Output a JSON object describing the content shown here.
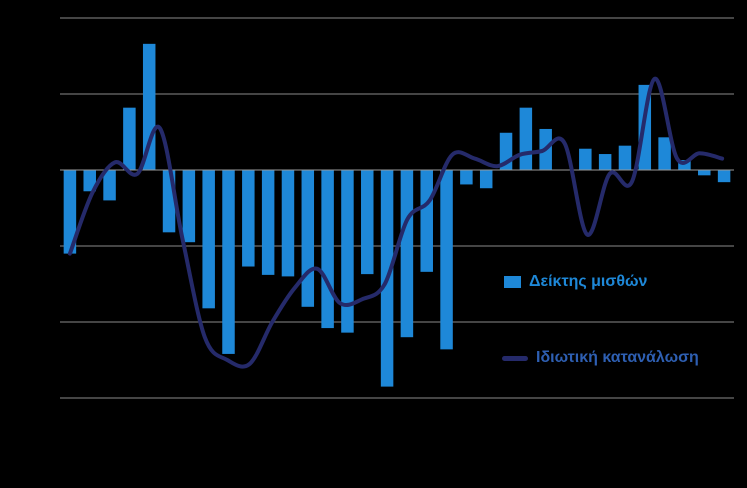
{
  "chart_data": {
    "type": "bar",
    "ylim": [
      -30,
      20
    ],
    "gridlines": [
      -30,
      -20,
      -10,
      10,
      20
    ],
    "grid": true,
    "legend_position": "right",
    "colors": {
      "bar": "#1e88d8",
      "line": "#252a6a",
      "grid": "#8a8a8a",
      "axis": "#9a9a9a",
      "background": "#000000",
      "legend_bar_text": "#1e88d8",
      "legend_line_text": "#2e5fb2"
    },
    "series": [
      {
        "name": "Δείκτης μισθών",
        "type": "bar",
        "values": [
          -11,
          -2.8,
          -4,
          8.2,
          16.6,
          -8.2,
          -9.5,
          -18.2,
          -24.2,
          -12.7,
          -13.8,
          -14,
          -18,
          -20.8,
          -21.4,
          -13.7,
          -28.5,
          -22,
          -13.4,
          -23.6,
          -1.9,
          -2.4,
          4.9,
          8.2,
          5.4,
          0,
          2.8,
          2.1,
          3.2,
          11.2,
          4.3,
          1.3,
          -0.7,
          -1.6
        ]
      },
      {
        "name": "Ιδιωτική κατανάλωση",
        "type": "line",
        "values": [
          -11,
          -3,
          1,
          -0.5,
          5.5,
          -9,
          -22,
          -25,
          -25.5,
          -20,
          -15.5,
          -13,
          -17.5,
          -17,
          -15,
          -6.5,
          -4,
          2,
          1.5,
          0.5,
          2,
          2.5,
          3.5,
          -8.5,
          -0.5,
          -1.5,
          12,
          1.5,
          2.2,
          1.5
        ]
      }
    ]
  }
}
